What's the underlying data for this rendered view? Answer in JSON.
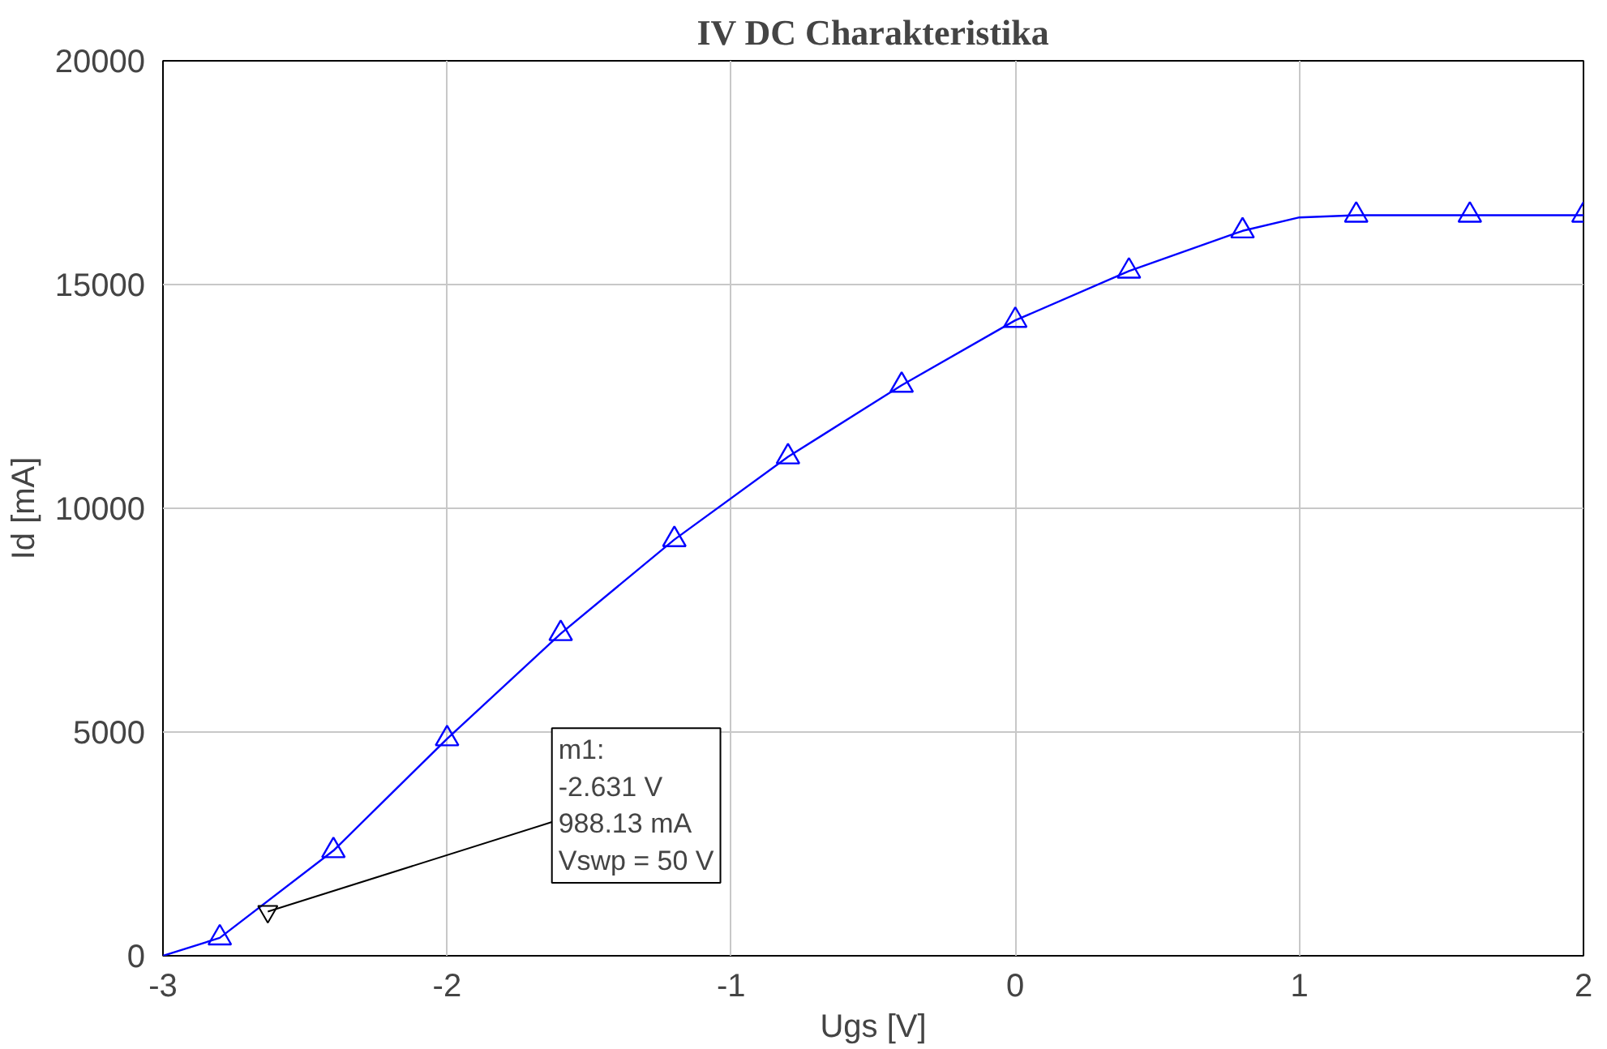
{
  "chart_data": {
    "type": "line",
    "title": "IV DC Charakteristika",
    "xlabel": "Ugs [V]",
    "ylabel": "Id [mA]",
    "xlim": [
      -3,
      2
    ],
    "ylim": [
      0,
      20000
    ],
    "xticks": [
      -3,
      -2,
      -1,
      0,
      1,
      2
    ],
    "yticks": [
      0,
      5000,
      10000,
      15000,
      20000
    ],
    "grid": true,
    "series": [
      {
        "color": "#0000ff",
        "marker": "none",
        "x": [
          -3,
          -2.8,
          -2.4,
          -2.0,
          -1.6,
          -1.2,
          -0.8,
          -0.4,
          0,
          0.4,
          0.8,
          1.0,
          1.2,
          1.6,
          2.0
        ],
        "values": [
          0,
          400,
          2350,
          4850,
          7200,
          9300,
          11150,
          12750,
          14200,
          15300,
          16200,
          16500,
          16550,
          16550,
          16550
        ]
      },
      {
        "type": "scatter",
        "color": "#0000ff",
        "marker": "triangle",
        "x": [
          -2.8,
          -2.4,
          -2.0,
          -1.6,
          -1.2,
          -0.8,
          -0.4,
          0,
          0.4,
          0.8,
          1.2,
          1.6,
          2.0
        ],
        "values": [
          400,
          2350,
          4850,
          7200,
          9300,
          11150,
          12750,
          14200,
          15300,
          16200,
          16550,
          16550,
          16550
        ]
      }
    ],
    "annotations": [
      {
        "text": "m1:\n-2.631 V\n988.13 mA\nVswp = 50 V",
        "x": -2.631,
        "y": 988.13
      }
    ]
  }
}
